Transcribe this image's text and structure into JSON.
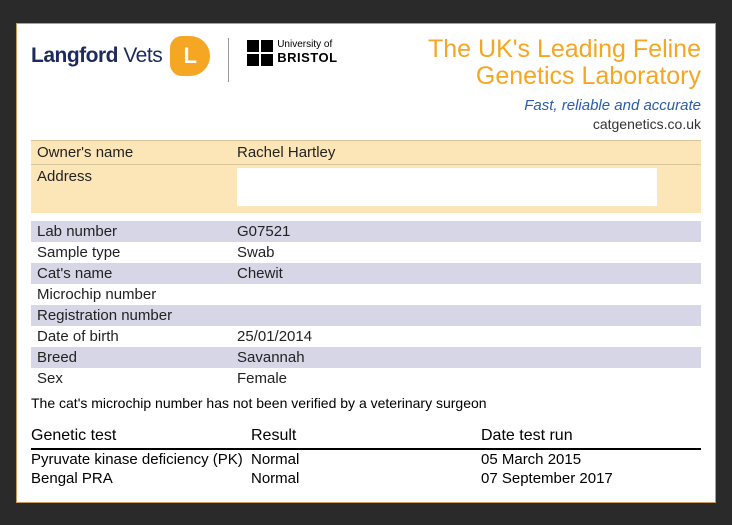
{
  "header": {
    "logo_primary": "Langford",
    "logo_secondary": "Vets",
    "uob_line1": "University of",
    "uob_line2": "BRISTOL",
    "headline_l1": "The UK's Leading Feline",
    "headline_l2": "Genetics Laboratory",
    "tagline": "Fast, reliable and accurate",
    "siteurl": "catgenetics.co.uk"
  },
  "owner": {
    "name_label": "Owner's name",
    "name_value": "Rachel Hartley",
    "address_label": "Address",
    "address_value": ""
  },
  "info_labels": {
    "lab_number": "Lab number",
    "sample_type": "Sample type",
    "cats_name": "Cat's name",
    "microchip": "Microchip number",
    "registration": "Registration number",
    "dob": "Date of birth",
    "breed": "Breed",
    "sex": "Sex"
  },
  "cat": {
    "lab_number": "G07521",
    "sample_type": "Swab",
    "cats_name": "Chewit",
    "microchip": "",
    "registration": "",
    "dob": "25/01/2014",
    "breed": "Savannah",
    "sex": "Female"
  },
  "note": "The cat's microchip number has not been verified by a veterinary surgeon",
  "tests_header": {
    "test": "Genetic test",
    "result": "Result",
    "date": "Date test run"
  },
  "tests": [
    {
      "name": "Pyruvate kinase deficiency (PK)",
      "result": "Normal",
      "date": "05 March 2015"
    },
    {
      "name": "Bengal PRA",
      "result": "Normal",
      "date": "07 September 2017"
    }
  ],
  "colors": {
    "accent_orange": "#f5a623",
    "brand_navy": "#1d2a5d",
    "tagline_blue": "#2a5caa",
    "owner_bg": "#fce6b8",
    "stripe_bg": "#d6d6e6",
    "page_border": "#c99a5a"
  }
}
